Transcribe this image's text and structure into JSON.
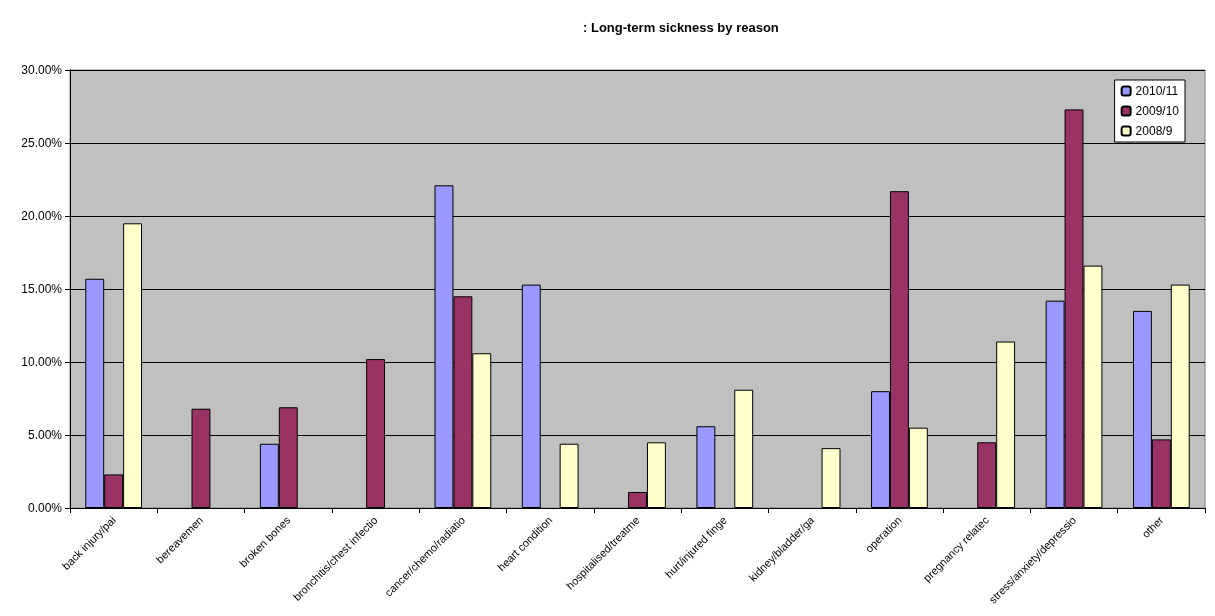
{
  "chart_data": {
    "type": "bar",
    "title": ": Long-term sickness by reason",
    "categories": [
      "back injury/pai",
      "bereavemen",
      "broken bones",
      "bronchitis/chest infectio",
      "cancer/chemo/radiatio",
      "heart condition",
      "hospitalised/treatme",
      "hurt/injured finge",
      "kidney/bladder/ga",
      "operation",
      "pregnancy relatec",
      "stress/anxiety/depressio",
      "other"
    ],
    "series": [
      {
        "name": "2010/11",
        "color": "#9999ff",
        "values": [
          15.7,
          0,
          4.4,
          0,
          22.1,
          15.3,
          0,
          5.6,
          0,
          8.0,
          0,
          14.2,
          13.5
        ]
      },
      {
        "name": "2009/10",
        "color": "#993366",
        "values": [
          2.3,
          6.8,
          6.9,
          10.2,
          14.5,
          0,
          1.1,
          0,
          0,
          21.7,
          4.5,
          27.3,
          4.7
        ]
      },
      {
        "name": "2008/9",
        "color": "#ffffcc",
        "values": [
          19.5,
          0,
          0,
          0,
          10.6,
          4.4,
          4.5,
          8.1,
          4.1,
          5.5,
          11.4,
          16.6,
          15.3
        ]
      }
    ],
    "ylim": [
      0,
      30
    ],
    "yticks": [
      {
        "value": 0,
        "label": "0.00%"
      },
      {
        "value": 5,
        "label": "5.00%"
      },
      {
        "value": 10,
        "label": "10.00%"
      },
      {
        "value": 15,
        "label": "15.00%"
      },
      {
        "value": 20,
        "label": "20.00%"
      },
      {
        "value": 25,
        "label": "25.00%"
      },
      {
        "value": 30,
        "label": "30.00%"
      }
    ],
    "grid": "y",
    "legend": "top right"
  }
}
